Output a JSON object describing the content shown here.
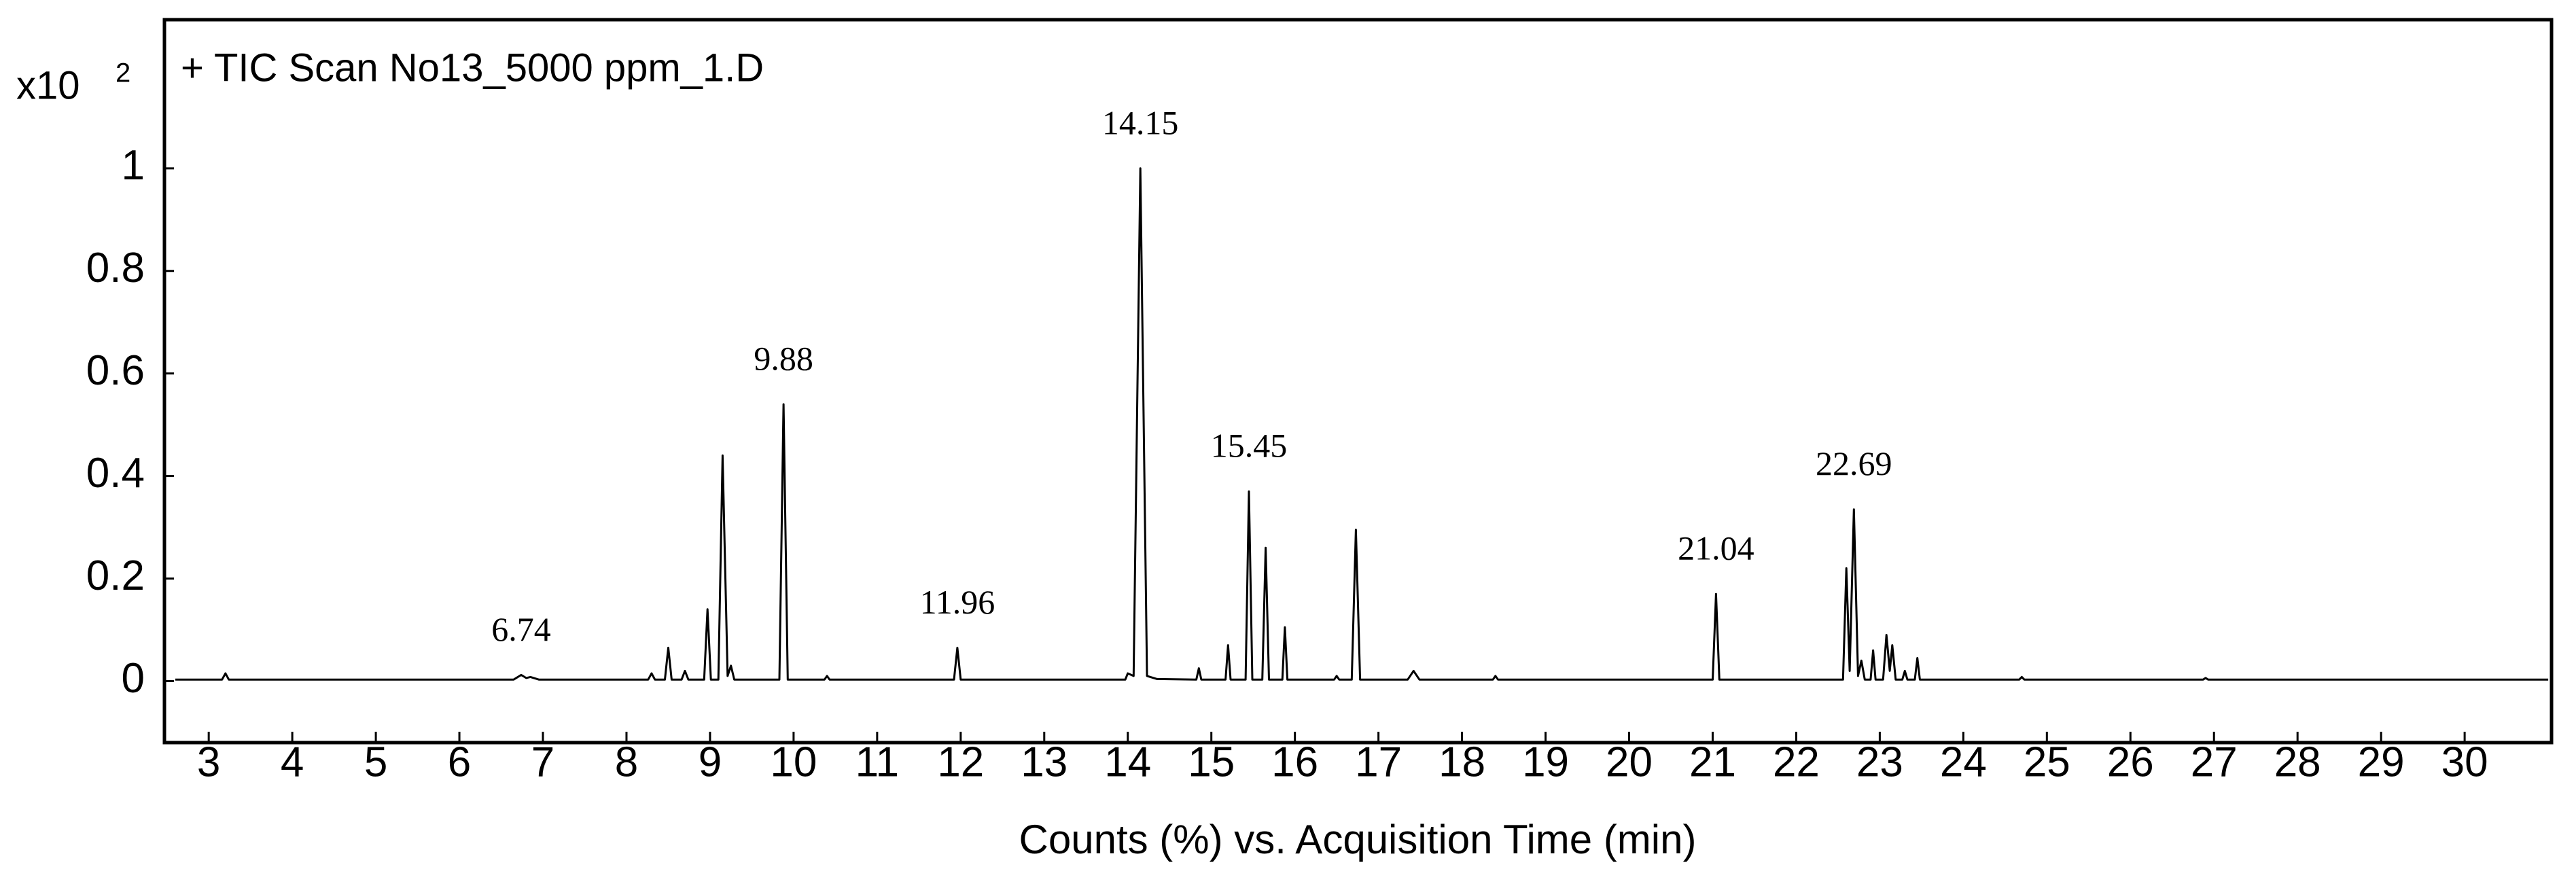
{
  "chart_data": {
    "type": "line",
    "title": "+ TIC Scan No13_5000 ppm_1.D",
    "y_multiplier": {
      "base": "x10",
      "exponent": "2"
    },
    "x_label": "Counts (%) vs. Acquisition Time (min)",
    "color": "#000000",
    "x": [
      2.6,
      3.16,
      3.2,
      3.24,
      6.65,
      6.74,
      6.8,
      6.85,
      6.95,
      8.26,
      8.3,
      8.34,
      8.46,
      8.5,
      8.54,
      8.66,
      8.7,
      8.74,
      8.93,
      8.97,
      9.01,
      9.1,
      9.15,
      9.21,
      9.25,
      9.29,
      9.83,
      9.88,
      9.93,
      10.37,
      10.4,
      10.43,
      11.92,
      11.96,
      12.0,
      13.97,
      14.0,
      14.07,
      14.15,
      14.23,
      14.35,
      14.82,
      14.85,
      14.88,
      15.17,
      15.2,
      15.23,
      15.41,
      15.45,
      15.49,
      15.61,
      15.65,
      15.69,
      15.85,
      15.88,
      15.91,
      16.47,
      16.5,
      16.53,
      16.68,
      16.73,
      16.78,
      17.35,
      17.42,
      17.49,
      18.37,
      18.4,
      18.43,
      21.0,
      21.04,
      21.08,
      22.56,
      22.6,
      22.64,
      22.69,
      22.74,
      22.78,
      22.82,
      22.89,
      22.92,
      22.95,
      23.04,
      23.08,
      23.12,
      23.15,
      23.19,
      23.27,
      23.3,
      23.33,
      23.42,
      23.45,
      23.48,
      24.67,
      24.7,
      24.73,
      26.87,
      26.9,
      26.93,
      31.0
    ],
    "values": [
      0.003,
      0.003,
      0.015,
      0.003,
      0.003,
      0.012,
      0.006,
      0.008,
      0.003,
      0.003,
      0.015,
      0.003,
      0.003,
      0.065,
      0.003,
      0.003,
      0.02,
      0.003,
      0.003,
      0.14,
      0.003,
      0.003,
      0.44,
      0.01,
      0.03,
      0.003,
      0.003,
      0.54,
      0.003,
      0.003,
      0.01,
      0.003,
      0.003,
      0.065,
      0.003,
      0.003,
      0.015,
      0.01,
      1.0,
      0.01,
      0.004,
      0.003,
      0.025,
      0.003,
      0.003,
      0.07,
      0.003,
      0.003,
      0.37,
      0.003,
      0.003,
      0.26,
      0.003,
      0.003,
      0.105,
      0.003,
      0.003,
      0.01,
      0.003,
      0.003,
      0.295,
      0.003,
      0.003,
      0.02,
      0.003,
      0.003,
      0.01,
      0.003,
      0.003,
      0.17,
      0.003,
      0.003,
      0.22,
      0.02,
      0.335,
      0.01,
      0.04,
      0.003,
      0.003,
      0.06,
      0.003,
      0.003,
      0.09,
      0.02,
      0.07,
      0.003,
      0.003,
      0.02,
      0.003,
      0.003,
      0.045,
      0.003,
      0.003,
      0.008,
      0.003,
      0.003,
      0.006,
      0.003,
      0.003
    ],
    "peak_labels": [
      6.74,
      9.88,
      11.96,
      14.15,
      15.45,
      21.04,
      22.69
    ],
    "xlim": [
      2.47,
      31.04
    ],
    "ylim": [
      -0.12,
      1.29
    ],
    "xticks": [
      3,
      4,
      5,
      6,
      7,
      8,
      9,
      10,
      11,
      12,
      13,
      14,
      15,
      16,
      17,
      18,
      19,
      20,
      21,
      22,
      23,
      24,
      25,
      26,
      27,
      28,
      29,
      30
    ],
    "yticks": [
      0,
      0.2,
      0.4,
      0.6,
      0.8,
      1
    ]
  }
}
